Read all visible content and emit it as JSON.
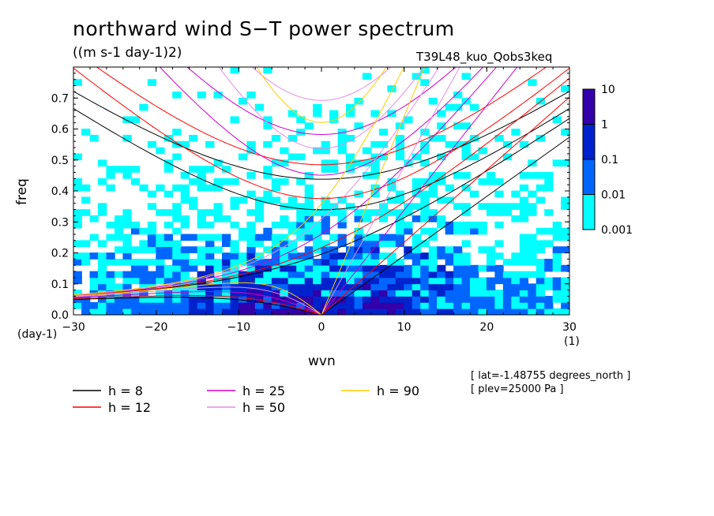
{
  "title": "northward wind S−T power spectrum",
  "units_label": "((m s-1 day-1)2)",
  "run_id": "T39L48_kuo_Qobs3keq",
  "info_lines": [
    "[ lat=-1.48755 degrees_north ]",
    "[ plev=25000 Pa ]"
  ],
  "colors": {
    "level_1": "#00ffff",
    "level_2": "#0066ff",
    "level_3": "#0022cc",
    "level_4": "#3300aa",
    "h8": "#000000",
    "h12": "#ff0000",
    "h25": "#cc00cc",
    "h50": "#e58ce5",
    "h90": "#ffcc00"
  },
  "chart_data": {
    "type": "heatmap",
    "title": "northward wind S−T power spectrum",
    "xlabel": "wvn",
    "xunit": "(1)",
    "ylabel": "freq",
    "yunit": "(day-1)",
    "xlim": [
      -30,
      30
    ],
    "ylim": [
      0,
      0.8
    ],
    "xticks": [
      -30,
      -20,
      -10,
      0,
      10,
      20,
      30
    ],
    "xtick_labels": [
      "−30",
      "−20",
      "−10",
      "0",
      "10",
      "20",
      "30"
    ],
    "yticks": [
      0,
      0.1,
      0.2,
      0.3,
      0.4,
      0.5,
      0.6,
      0.7
    ],
    "ytick_labels": [
      "0.0",
      "0.1",
      "0.2",
      "0.3",
      "0.4",
      "0.5",
      "0.6",
      "0.7"
    ],
    "colorbar": {
      "levels": [
        "0.001",
        "0.01",
        "0.1",
        "1",
        "10"
      ],
      "colors": [
        "#00ffff",
        "#0066ff",
        "#0022cc",
        "#3300aa"
      ]
    },
    "dispersion_curves": [
      {
        "name": "h =  8",
        "h": 8,
        "color": "#000000"
      },
      {
        "name": "h = 12",
        "h": 12,
        "color": "#ff0000"
      },
      {
        "name": "h = 25",
        "h": 25,
        "color": "#cc00cc"
      },
      {
        "name": "h = 50",
        "h": 50,
        "color": "#e58ce5"
      },
      {
        "name": "h = 90",
        "h": 90,
        "color": "#ffcc00"
      }
    ]
  }
}
